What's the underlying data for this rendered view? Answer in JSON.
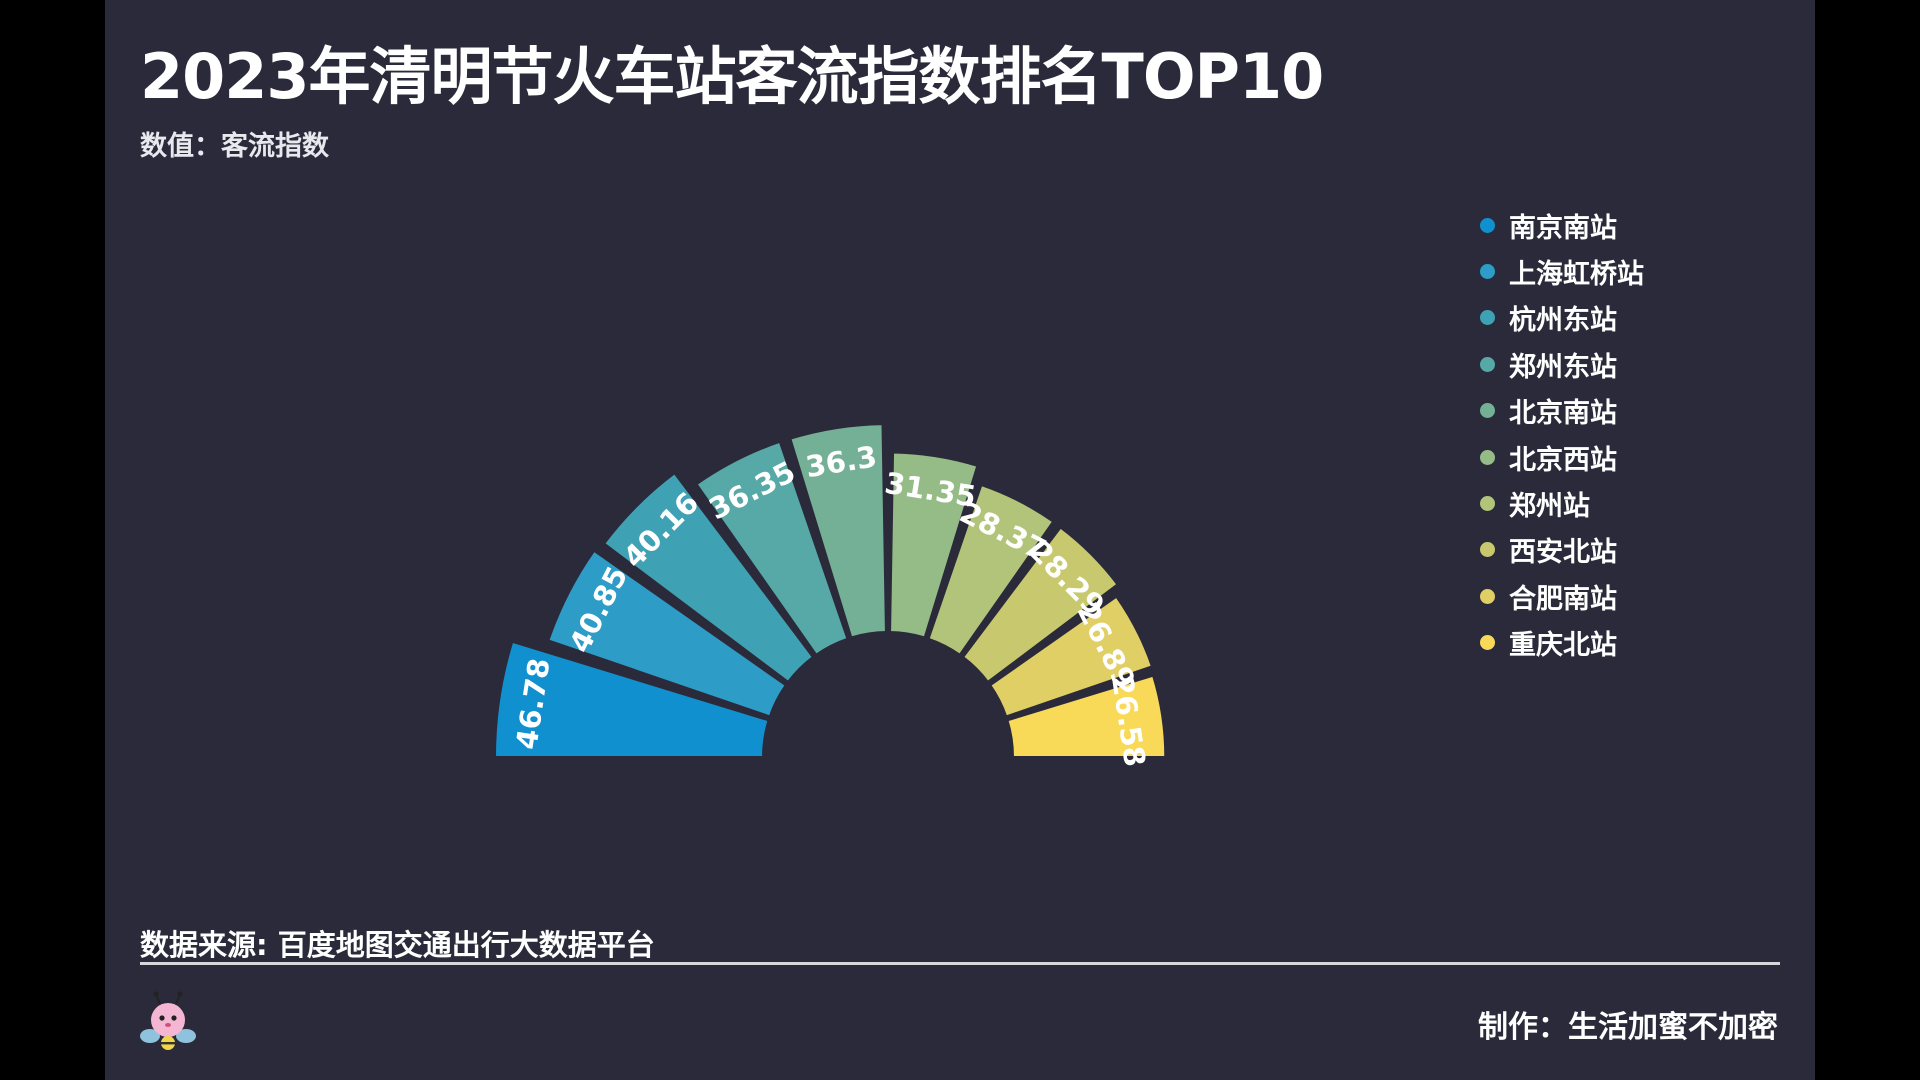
{
  "title": "2023年清明节火车站客流指数排名TOP10",
  "subtitle": "数值：客流指数",
  "source": "数据来源: 百度地图交通出行大数据平台",
  "credit": "制作：生活加蜜不加密",
  "logo_icon": "bee-mascot-icon",
  "colors": {
    "background": "#2b2a3a",
    "page": "#000000",
    "slices": [
      "#1190d0",
      "#2d9cc6",
      "#3fa2b4",
      "#56a9a6",
      "#74b096",
      "#95bb87",
      "#b2c47a",
      "#c8c96f",
      "#e0cf64",
      "#f8da58"
    ],
    "edge": "#2b2a3a",
    "label": "#ffffff"
  },
  "chart_data": {
    "type": "polar-bar",
    "title": "2023年清明节火车站客流指数排名TOP10",
    "unit_label": "数值：客流指数",
    "categories": [
      "南京南站",
      "上海虹桥站",
      "杭州东站",
      "郑州东站",
      "北京南站",
      "北京西站",
      "郑州站",
      "西安北站",
      "合肥南站",
      "重庆北站"
    ],
    "values": [
      46.78,
      40.85,
      40.16,
      36.35,
      36.3,
      31.35,
      28.37,
      28.29,
      26.89,
      26.58
    ],
    "value_labels": [
      "46.78",
      "40.85",
      "40.16",
      "36.35",
      "36.3",
      "31.35",
      "28.37",
      "28.29",
      "26.89",
      "26.58"
    ],
    "angular_range_degrees": [
      180,
      0
    ],
    "radial_min": 0,
    "legend_position": "right",
    "sort": "descending"
  }
}
